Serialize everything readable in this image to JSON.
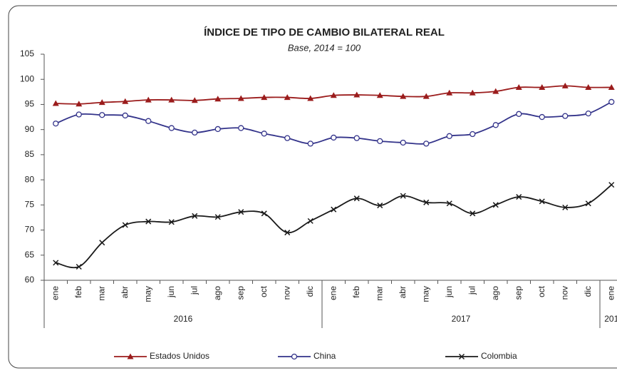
{
  "chart_data": {
    "type": "line",
    "title": "ÍNDICE DE TIPO DE CAMBIO BILATERAL REAL",
    "subtitle": "Base, 2014 = 100",
    "categories": [
      "ene",
      "feb",
      "mar",
      "abr",
      "may",
      "jun",
      "jul",
      "ago",
      "sep",
      "oct",
      "nov",
      "dic",
      "ene",
      "feb",
      "mar",
      "abr",
      "may",
      "jun",
      "jul",
      "ago",
      "sep",
      "oct",
      "nov",
      "dic",
      "ene"
    ],
    "groups": [
      "2016",
      "2017",
      "201"
    ],
    "series": [
      {
        "name": "Estados Unidos",
        "color": "#9b1c1c",
        "marker": "triangle",
        "values": [
          95.2,
          95.1,
          95.4,
          95.6,
          95.9,
          95.9,
          95.8,
          96.1,
          96.2,
          96.4,
          96.4,
          96.2,
          96.8,
          96.9,
          96.8,
          96.6,
          96.6,
          97.3,
          97.3,
          97.6,
          98.4,
          98.4,
          98.7,
          98.4,
          98.4
        ]
      },
      {
        "name": "China",
        "color": "#33338a",
        "marker": "circle",
        "values": [
          91.2,
          93.0,
          92.9,
          92.8,
          91.7,
          90.3,
          89.4,
          90.1,
          90.3,
          89.2,
          88.3,
          87.2,
          88.4,
          88.3,
          87.7,
          87.4,
          87.2,
          88.7,
          89.1,
          90.9,
          93.1,
          92.5,
          92.7,
          93.2,
          95.5
        ]
      },
      {
        "name": "Colombia",
        "color": "#1a1a1a",
        "marker": "x",
        "values": [
          63.5,
          62.7,
          67.5,
          71.0,
          71.7,
          71.6,
          72.8,
          72.6,
          73.6,
          73.3,
          69.5,
          71.8,
          74.1,
          76.3,
          74.9,
          76.8,
          75.5,
          75.3,
          73.3,
          75.0,
          76.6,
          75.7,
          74.5,
          75.3,
          79.0
        ]
      }
    ],
    "ylim": [
      60,
      105
    ],
    "yticks": [
      60,
      65,
      70,
      75,
      80,
      85,
      90,
      95,
      100,
      105
    ],
    "legend": "bottom"
  }
}
